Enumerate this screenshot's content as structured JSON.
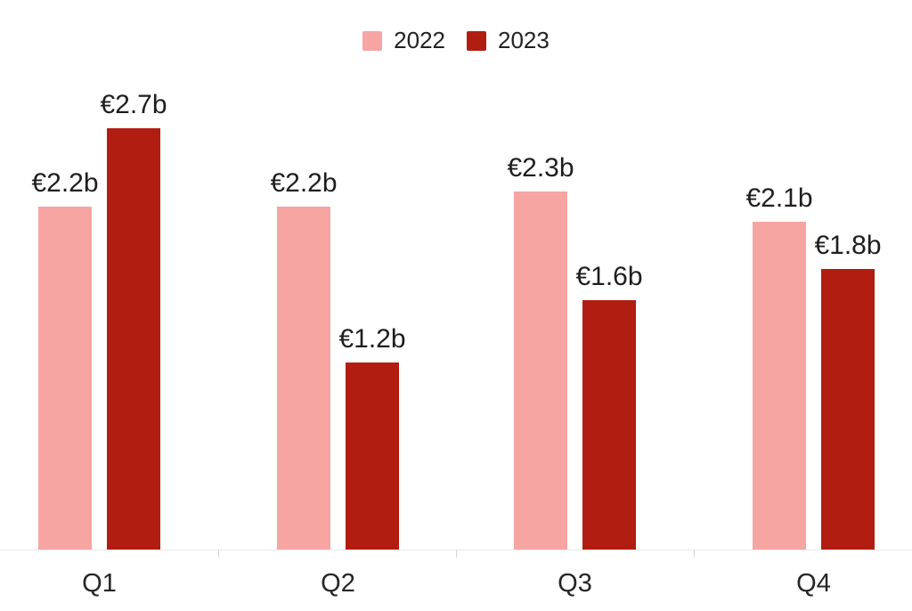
{
  "chart_data": {
    "type": "bar",
    "categories": [
      "Q1",
      "Q2",
      "Q3",
      "Q4"
    ],
    "series": [
      {
        "name": "2022",
        "color": "#F6A5A2",
        "values": [
          2.2,
          2.2,
          2.3,
          2.1
        ],
        "value_labels": [
          "€2.2b",
          "€2.2b",
          "€2.3b",
          "€2.1b"
        ]
      },
      {
        "name": "2023",
        "color": "#B21D11",
        "values": [
          2.7,
          1.2,
          1.6,
          1.8
        ],
        "value_labels": [
          "€2.7b",
          "€1.2b",
          "€1.6b",
          "€1.8b"
        ]
      }
    ],
    "title": "",
    "xlabel": "",
    "ylabel": "",
    "ylim": [
      0,
      2.85
    ],
    "unit": "€ billions",
    "grid": false,
    "legend_position": "top-center",
    "value_labels_shown": true,
    "y_axis_shown": false
  },
  "legend": {
    "items": [
      {
        "label": "2022",
        "color": "#F6A5A2"
      },
      {
        "label": "2023",
        "color": "#B21D11"
      }
    ]
  },
  "colors": {
    "background": "#ffffff",
    "axis_line": "#e8e8e8",
    "tick": "#d4d4d4",
    "label_text": "#1e1e1e"
  }
}
